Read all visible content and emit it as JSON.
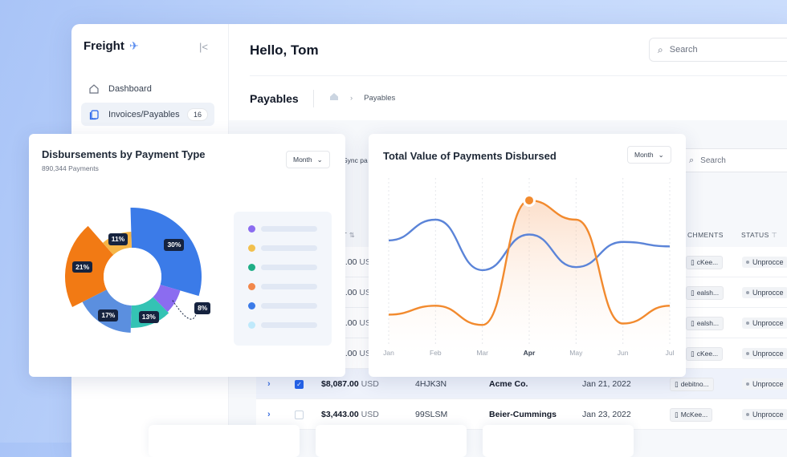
{
  "app": {
    "logo": "Freight"
  },
  "sidebar": {
    "items": [
      {
        "label": "Dashboard"
      },
      {
        "label": "Invoices/Payables",
        "badge": "16"
      }
    ]
  },
  "header": {
    "greeting": "Hello, Tom",
    "search_placeholder": "Search"
  },
  "page": {
    "title": "Payables",
    "breadcrumb": "Payables"
  },
  "toolbar": {
    "sync_label": "Sync pa",
    "search_placeholder": "Search"
  },
  "table": {
    "headers": {
      "amount": "NT",
      "attachments": "CHMENTS",
      "status": "STATUS"
    },
    "rows": [
      {
        "amount": "0.00",
        "unit": "US",
        "attachment": "cKee...",
        "status": "Unprocce",
        "selected": false
      },
      {
        "amount": "0.00",
        "unit": "US",
        "attachment": "ealsh...",
        "status": "Unprocce",
        "selected": false
      },
      {
        "amount": "9.00",
        "unit": "US",
        "attachment": "ealsh...",
        "status": "Unprocce",
        "selected": false
      },
      {
        "amount": "9.00",
        "unit": "US",
        "attachment": "cKee...",
        "status": "Unprocce",
        "selected": false
      },
      {
        "amount": "$8,087.00",
        "unit": "USD",
        "ref": "4HJK3N",
        "vendor": "Acme Co.",
        "date": "Jan 21, 2022",
        "attachment": "debitno...",
        "status": "Unprocce",
        "selected": true
      },
      {
        "amount": "$3,443.00",
        "unit": "USD",
        "ref": "99SLSM",
        "vendor": "Beier-Cummings",
        "date": "Jan 23, 2022",
        "attachment": "McKee...",
        "status": "Unprocce",
        "selected": false
      }
    ]
  },
  "donut_card": {
    "title": "Disbursements by Payment Type",
    "subtitle": "890,344 Payments",
    "dropdown": "Month",
    "legend_colors": [
      "#8b6cf0",
      "#f2c04d",
      "#1fae86",
      "#f2884b",
      "#3b7be8",
      "#bfe9fb"
    ]
  },
  "line_card": {
    "title": "Total Value of Payments Disbursed",
    "dropdown": "Month"
  },
  "chart_data": [
    {
      "type": "pie",
      "title": "Disbursements by Payment Type",
      "slices": [
        {
          "label": "30%",
          "value": 30,
          "color": "#3b7be8"
        },
        {
          "label": "8%",
          "value": 8,
          "color": "#8b6cf0"
        },
        {
          "label": "13%",
          "value": 13,
          "color": "#34c3b4"
        },
        {
          "label": "17%",
          "value": 17,
          "color": "#5b8fdf"
        },
        {
          "label": "21%",
          "value": 21,
          "color": "#f27a14"
        },
        {
          "label": "11%",
          "value": 11,
          "color": "#f5b547"
        }
      ]
    },
    {
      "type": "area",
      "title": "Total Value of Payments Disbursed",
      "categories": [
        "Jan",
        "Feb",
        "Mar",
        "Apr",
        "May",
        "Jun",
        "Jul"
      ],
      "highlight": "Apr",
      "ylim": [
        0,
        100
      ],
      "grid": true,
      "series": [
        {
          "color": "#f28a2e",
          "values": [
            16,
            22,
            9,
            93,
            80,
            10,
            22
          ]
        },
        {
          "color": "#5b84d8",
          "values": [
            66,
            80,
            46,
            70,
            48,
            65,
            62
          ]
        }
      ]
    }
  ]
}
